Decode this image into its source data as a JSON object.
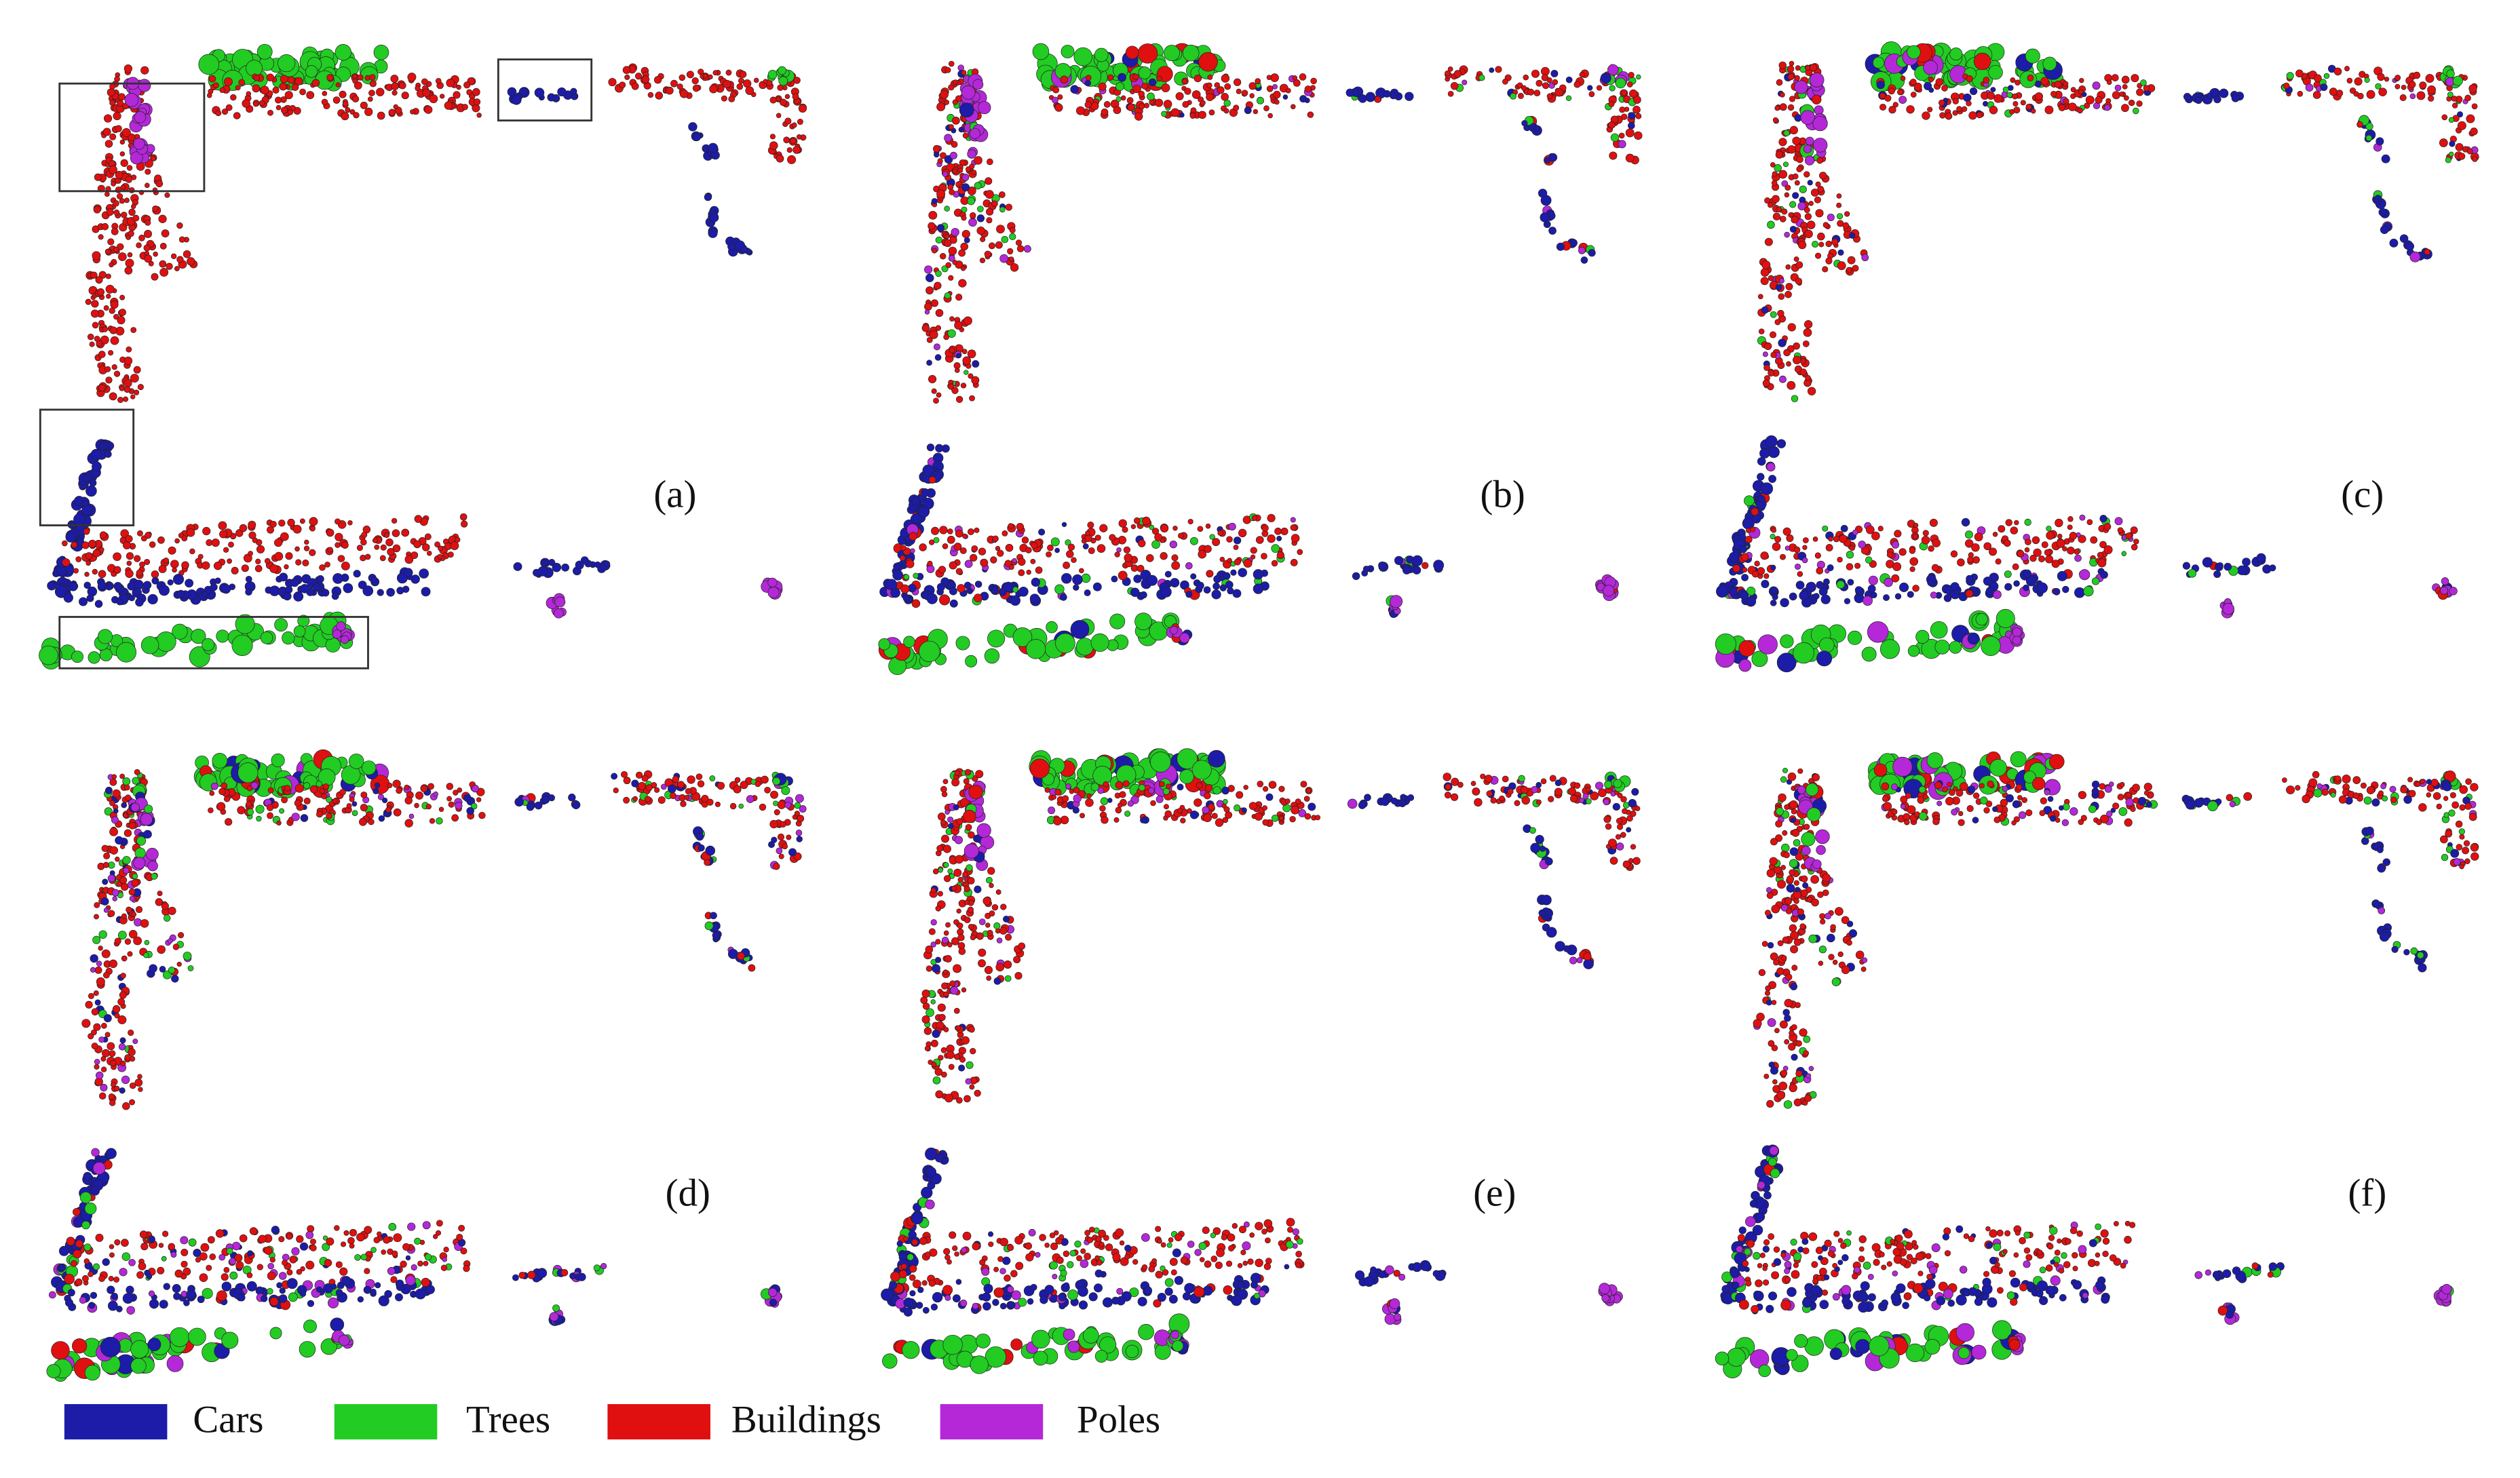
{
  "panels": [
    {
      "label": "(a)"
    },
    {
      "label": "(b)"
    },
    {
      "label": "(c)"
    },
    {
      "label": "(d)"
    },
    {
      "label": "(e)"
    },
    {
      "label": "(f)"
    }
  ],
  "legend": [
    {
      "label": "Cars",
      "color": "#1c1ca8"
    },
    {
      "label": "Trees",
      "color": "#22cc22"
    },
    {
      "label": "Buildings",
      "color": "#e01010"
    },
    {
      "label": "Poles",
      "color": "#b428d8"
    }
  ]
}
